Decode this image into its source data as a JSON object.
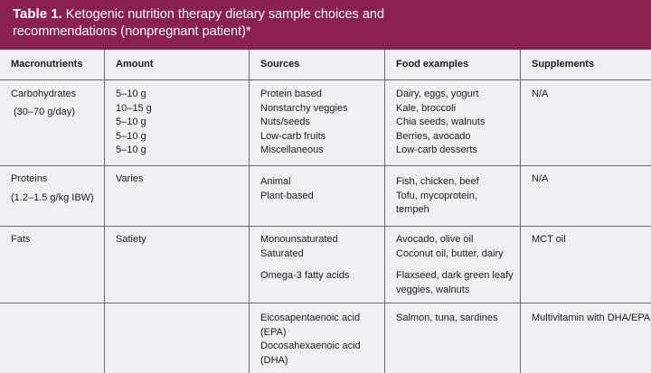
{
  "title": {
    "label": "Table 1.",
    "text_line1": " Ketogenic nutrition therapy dietary sample choices and",
    "text_line2": "recommendations (nonpregnant patient)*"
  },
  "headers": [
    "Macronutrients",
    "Amount",
    "Sources",
    "Food examples",
    "Supplements"
  ],
  "rows": {
    "carbs": {
      "macro": "Carbohydrates",
      "macro_range": "(30–70 g/day)",
      "amounts": [
        "5–10 g",
        "10–15 g",
        "5–10 g",
        "5–10 g",
        "5–10 g"
      ],
      "sources": [
        "Protein based",
        "Nonstarchy veggies",
        "Nuts/seeds",
        "Low-carb fruits",
        "Miscellaneous"
      ],
      "foods": [
        "Dairy, eggs, yogurt",
        "Kale, broccoli",
        "Chia seeds, walnuts",
        "Berries, avocado",
        "Low-carb desserts"
      ],
      "supplements": "N/A"
    },
    "proteins": {
      "macro": "Proteins",
      "macro_range": "(1.2–1.5 g/kg IBW)",
      "amount": "Varies",
      "sources": [
        "Animal",
        "Plant-based"
      ],
      "foods": [
        "Fish, chicken, beef",
        "Tofu, mycoprotein,",
        "tempeh"
      ],
      "supplements": "N/A"
    },
    "fats": {
      "macro": "Fats",
      "amount": "Satiety",
      "sources": [
        "Monounsaturated",
        "Saturated",
        "Omega-3 fatty acids"
      ],
      "foods": [
        "Avocado, olive oil",
        "Coconut oil, butter, dairy",
        "Flaxseed, dark green leafy",
        "veggies, walnuts"
      ],
      "supplements": "MCT oil"
    },
    "fats_extra": {
      "sources": [
        "Eicosapentaenoic acid",
        "(EPA)",
        "Docosahexaenoic acid",
        "(DHA)"
      ],
      "foods": "Salmon, tuna, sardines",
      "supplements": "Multivitamin with DHA/EPA"
    }
  }
}
